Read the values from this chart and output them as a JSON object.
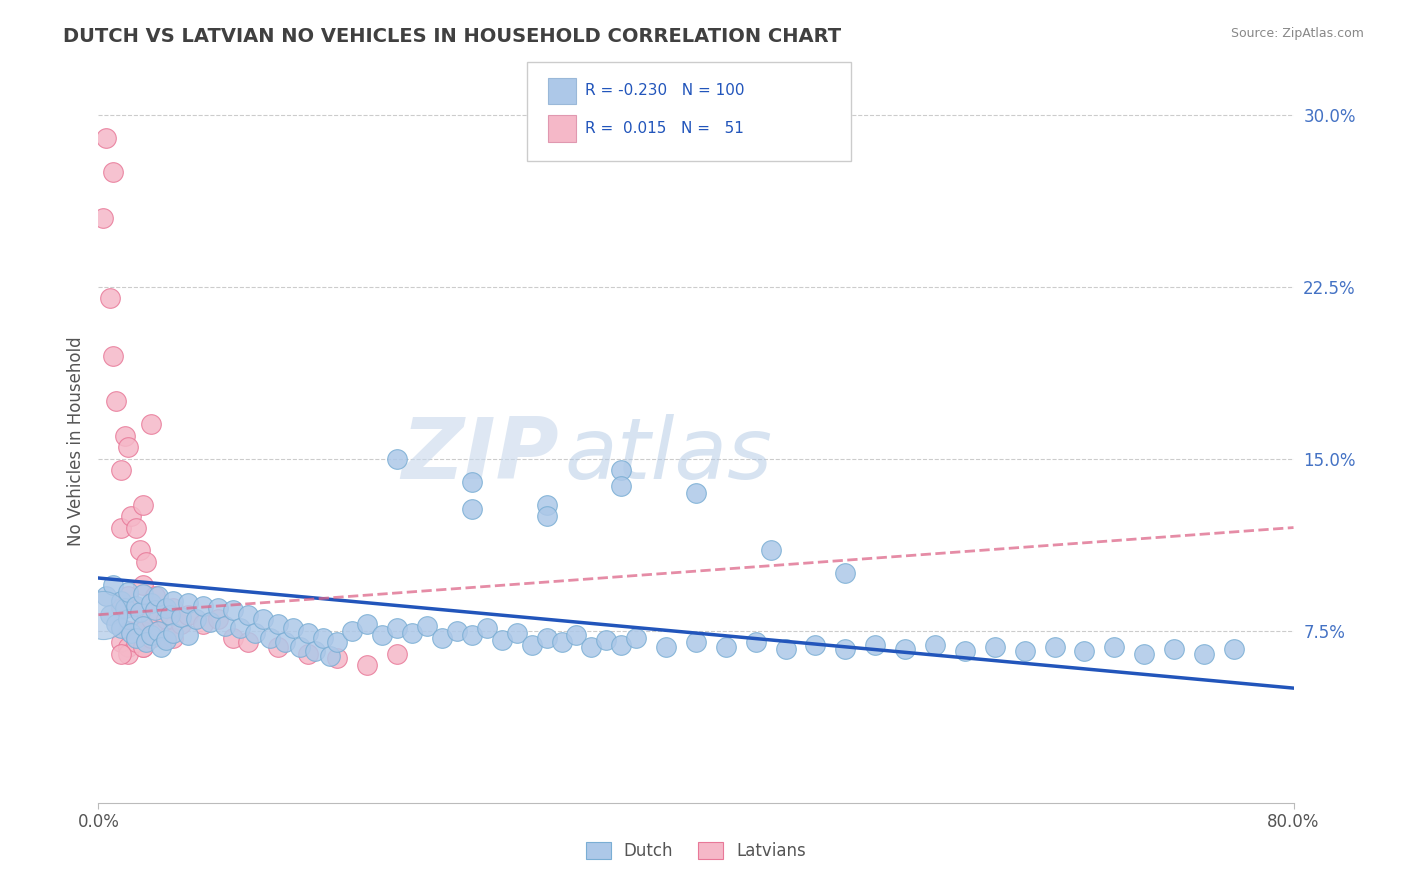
{
  "title": "DUTCH VS LATVIAN NO VEHICLES IN HOUSEHOLD CORRELATION CHART",
  "source": "Source: ZipAtlas.com",
  "ylabel": "No Vehicles in Household",
  "right_yticks": [
    0.075,
    0.15,
    0.225,
    0.3
  ],
  "right_yticklabels": [
    "7.5%",
    "15.0%",
    "22.5%",
    "30.0%"
  ],
  "xlim": [
    0.0,
    0.8
  ],
  "ylim": [
    0.0,
    0.315
  ],
  "dutch_color": "#adc8e8",
  "dutch_edge": "#7aaed4",
  "latvian_color": "#f5b8c8",
  "latvian_edge": "#e87898",
  "dutch_R": -0.23,
  "dutch_N": 100,
  "latvian_R": 0.015,
  "latvian_N": 51,
  "trend_dutch_color": "#2255bb",
  "trend_latvian_color": "#dd6688",
  "watermark_zip": "ZIP",
  "watermark_atlas": "atlas",
  "background_color": "#ffffff",
  "grid_color": "#cccccc",
  "legend_box_dutch": "#adc8e8",
  "legend_box_latvian": "#f5b8c8",
  "dutch_points_x": [
    0.005,
    0.008,
    0.01,
    0.012,
    0.015,
    0.015,
    0.018,
    0.02,
    0.02,
    0.022,
    0.025,
    0.025,
    0.028,
    0.03,
    0.03,
    0.032,
    0.035,
    0.035,
    0.038,
    0.04,
    0.04,
    0.042,
    0.045,
    0.045,
    0.048,
    0.05,
    0.05,
    0.055,
    0.06,
    0.06,
    0.065,
    0.07,
    0.075,
    0.08,
    0.085,
    0.09,
    0.095,
    0.1,
    0.105,
    0.11,
    0.115,
    0.12,
    0.125,
    0.13,
    0.135,
    0.14,
    0.145,
    0.15,
    0.155,
    0.16,
    0.17,
    0.18,
    0.19,
    0.2,
    0.21,
    0.22,
    0.23,
    0.24,
    0.25,
    0.26,
    0.27,
    0.28,
    0.29,
    0.3,
    0.31,
    0.32,
    0.33,
    0.34,
    0.35,
    0.36,
    0.38,
    0.4,
    0.42,
    0.44,
    0.46,
    0.48,
    0.5,
    0.52,
    0.54,
    0.56,
    0.58,
    0.6,
    0.62,
    0.64,
    0.66,
    0.68,
    0.7,
    0.72,
    0.74,
    0.76,
    0.2,
    0.25,
    0.3,
    0.35,
    0.4,
    0.3,
    0.35,
    0.25,
    0.45,
    0.5
  ],
  "dutch_points_y": [
    0.09,
    0.082,
    0.095,
    0.078,
    0.088,
    0.076,
    0.085,
    0.092,
    0.08,
    0.074,
    0.086,
    0.072,
    0.083,
    0.091,
    0.077,
    0.07,
    0.087,
    0.073,
    0.084,
    0.09,
    0.075,
    0.068,
    0.085,
    0.071,
    0.082,
    0.088,
    0.074,
    0.081,
    0.087,
    0.073,
    0.08,
    0.086,
    0.079,
    0.085,
    0.077,
    0.084,
    0.076,
    0.082,
    0.074,
    0.08,
    0.072,
    0.078,
    0.07,
    0.076,
    0.068,
    0.074,
    0.066,
    0.072,
    0.064,
    0.07,
    0.075,
    0.078,
    0.073,
    0.076,
    0.074,
    0.077,
    0.072,
    0.075,
    0.073,
    0.076,
    0.071,
    0.074,
    0.069,
    0.072,
    0.07,
    0.073,
    0.068,
    0.071,
    0.069,
    0.072,
    0.068,
    0.07,
    0.068,
    0.07,
    0.067,
    0.069,
    0.067,
    0.069,
    0.067,
    0.069,
    0.066,
    0.068,
    0.066,
    0.068,
    0.066,
    0.068,
    0.065,
    0.067,
    0.065,
    0.067,
    0.15,
    0.14,
    0.13,
    0.145,
    0.135,
    0.125,
    0.138,
    0.128,
    0.11,
    0.1
  ],
  "latvian_points_x": [
    0.003,
    0.005,
    0.008,
    0.01,
    0.01,
    0.012,
    0.015,
    0.015,
    0.015,
    0.018,
    0.02,
    0.02,
    0.02,
    0.022,
    0.025,
    0.025,
    0.025,
    0.028,
    0.03,
    0.03,
    0.03,
    0.032,
    0.035,
    0.035,
    0.038,
    0.04,
    0.04,
    0.045,
    0.045,
    0.05,
    0.05,
    0.055,
    0.06,
    0.07,
    0.08,
    0.09,
    0.1,
    0.12,
    0.14,
    0.16,
    0.18,
    0.2,
    0.015,
    0.02,
    0.025,
    0.03,
    0.02,
    0.025,
    0.015,
    0.03,
    0.035
  ],
  "latvian_points_y": [
    0.255,
    0.29,
    0.22,
    0.275,
    0.195,
    0.175,
    0.145,
    0.12,
    0.085,
    0.16,
    0.155,
    0.09,
    0.075,
    0.125,
    0.12,
    0.085,
    0.075,
    0.11,
    0.13,
    0.095,
    0.075,
    0.105,
    0.165,
    0.08,
    0.09,
    0.082,
    0.075,
    0.08,
    0.072,
    0.085,
    0.072,
    0.078,
    0.082,
    0.078,
    0.08,
    0.072,
    0.07,
    0.068,
    0.065,
    0.063,
    0.06,
    0.065,
    0.07,
    0.068,
    0.072,
    0.068,
    0.065,
    0.07,
    0.065,
    0.068,
    0.072
  ],
  "dutch_trend_x0": 0.0,
  "dutch_trend_y0": 0.098,
  "dutch_trend_x1": 0.8,
  "dutch_trend_y1": 0.05,
  "latvian_trend_x0": 0.0,
  "latvian_trend_y0": 0.082,
  "latvian_trend_x1": 0.8,
  "latvian_trend_y1": 0.12
}
